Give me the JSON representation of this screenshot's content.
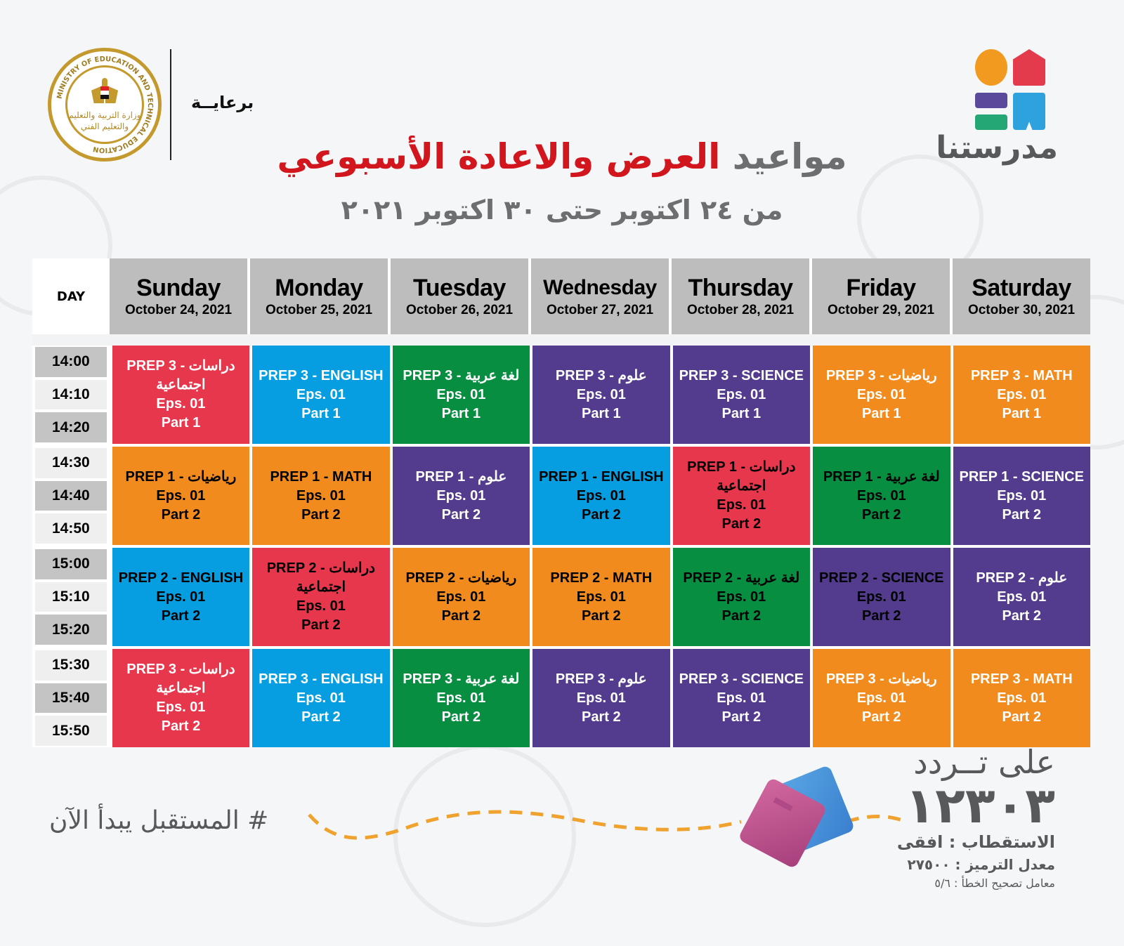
{
  "header": {
    "sponsor_label": "برعايــة",
    "ministry_logo": {
      "english_text": "MINISTRY OF EDUCATION AND TECHNICAL EDUCATION",
      "arabic_text_line1": "وزارة التربية والتعليم",
      "arabic_text_line2": "والتعليم الفني"
    },
    "brand_logo_text": "مدرستنا",
    "title_part1": "مواعيد ",
    "title_part2": "العرض والاعادة الأسبوعي",
    "subtitle": "من ٢٤ اكتوبر حتى ٣٠ اكتوبر ٢٠٢١",
    "colors": {
      "title_gray": "#6d6e70",
      "title_red": "#d2161d"
    }
  },
  "table": {
    "day_label": "DAY",
    "days": [
      {
        "name": "Sunday",
        "date": "October 24, 2021"
      },
      {
        "name": "Monday",
        "date": "October 25, 2021"
      },
      {
        "name": "Tuesday",
        "date": "October 26, 2021"
      },
      {
        "name": "Wednesday",
        "date": "October 27, 2021"
      },
      {
        "name": "Thursday",
        "date": "October 28, 2021"
      },
      {
        "name": "Friday",
        "date": "October 29, 2021"
      },
      {
        "name": "Saturday",
        "date": "October 30, 2021"
      }
    ],
    "blocks": [
      {
        "times": [
          "14:00",
          "14:10",
          "14:20"
        ],
        "slots": [
          {
            "subject": "PREP 3 - دراسات اجتماعية",
            "episode": "Eps. 01",
            "part": "Part 1",
            "color": "red"
          },
          {
            "subject": "PREP 3 - ENGLISH",
            "episode": "Eps. 01",
            "part": "Part 1",
            "color": "blue"
          },
          {
            "subject": "PREP 3 - لغة عربية",
            "episode": "Eps. 01",
            "part": "Part 1",
            "color": "green"
          },
          {
            "subject": "PREP 3 - علوم",
            "episode": "Eps. 01",
            "part": "Part 1",
            "color": "purple"
          },
          {
            "subject": "PREP 3 - SCIENCE",
            "episode": "Eps. 01",
            "part": "Part 1",
            "color": "purple"
          },
          {
            "subject": "PREP 3 - رياضيات",
            "episode": "Eps. 01",
            "part": "Part 1",
            "color": "orange"
          },
          {
            "subject": "PREP 3 - MATH",
            "episode": "Eps. 01",
            "part": "Part 1",
            "color": "orange"
          }
        ]
      },
      {
        "times": [
          "14:30",
          "14:40",
          "14:50"
        ],
        "slots": [
          {
            "subject": "PREP 1 - رياضيات",
            "episode": "Eps. 01",
            "part": "Part 2",
            "color": "orange"
          },
          {
            "subject": "PREP 1 - MATH",
            "episode": "Eps. 01",
            "part": "Part 2",
            "color": "orange"
          },
          {
            "subject": "PREP 1 - علوم",
            "episode": "Eps. 01",
            "part": "Part 2",
            "color": "purple"
          },
          {
            "subject": "PREP 1 - ENGLISH",
            "episode": "Eps. 01",
            "part": "Part 2",
            "color": "blue"
          },
          {
            "subject": "PREP 1 - دراسات اجتماعية",
            "episode": "Eps. 01",
            "part": "Part 2",
            "color": "red"
          },
          {
            "subject": "PREP 1 - لغة عربية",
            "episode": "Eps. 01",
            "part": "Part 2",
            "color": "green"
          },
          {
            "subject": "PREP 1 - SCIENCE",
            "episode": "Eps. 01",
            "part": "Part 2",
            "color": "purple"
          }
        ]
      },
      {
        "times": [
          "15:00",
          "15:10",
          "15:20"
        ],
        "slots": [
          {
            "subject": "PREP 2 - ENGLISH",
            "episode": "Eps. 01",
            "part": "Part 2",
            "color": "blue"
          },
          {
            "subject": "PREP 2 - دراسات اجتماعية",
            "episode": "Eps. 01",
            "part": "Part 2",
            "color": "red"
          },
          {
            "subject": "PREP 2 - رياضيات",
            "episode": "Eps. 01",
            "part": "Part 2",
            "color": "orange"
          },
          {
            "subject": "PREP 2 - MATH",
            "episode": "Eps. 01",
            "part": "Part 2",
            "color": "orange"
          },
          {
            "subject": "PREP 2 - لغة عربية",
            "episode": "Eps. 01",
            "part": "Part 2",
            "color": "green"
          },
          {
            "subject": "PREP 2 - SCIENCE",
            "episode": "Eps. 01",
            "part": "Part 2",
            "color": "purple"
          },
          {
            "subject": "PREP 2 - علوم",
            "episode": "Eps. 01",
            "part": "Part 2",
            "color": "purple"
          }
        ]
      },
      {
        "times": [
          "15:30",
          "15:40",
          "15:50"
        ],
        "slots": [
          {
            "subject": "PREP 3 - دراسات اجتماعية",
            "episode": "Eps. 01",
            "part": "Part 2",
            "color": "red"
          },
          {
            "subject": "PREP 3 - ENGLISH",
            "episode": "Eps. 01",
            "part": "Part 2",
            "color": "blue"
          },
          {
            "subject": "PREP 3 - لغة عربية",
            "episode": "Eps. 01",
            "part": "Part 2",
            "color": "green"
          },
          {
            "subject": "PREP 3 - علوم",
            "episode": "Eps. 01",
            "part": "Part 2",
            "color": "purple"
          },
          {
            "subject": "PREP 3 - SCIENCE",
            "episode": "Eps. 01",
            "part": "Part 2",
            "color": "purple"
          },
          {
            "subject": "PREP 3 - رياضيات",
            "episode": "Eps. 01",
            "part": "Part 2",
            "color": "orange"
          },
          {
            "subject": "PREP 3 - MATH",
            "episode": "Eps. 01",
            "part": "Part 2",
            "color": "orange"
          }
        ]
      }
    ],
    "colors": {
      "red": "#e6374c",
      "blue": "#069ee0",
      "green": "#078e41",
      "purple": "#533b8d",
      "orange": "#f18b1d",
      "header_gray": "#bdbdbd"
    }
  },
  "footer": {
    "hashtag": "# المستقبل يبدأ الآن",
    "frequency_label": "على تــردد",
    "frequency_value": "١٢٣٠٣",
    "polarization": "الاستقطاب : افقى",
    "symbol_rate": "معدل الترميز : ٢٧٥٠٠",
    "fec": "معامل تصحيح الخطأ : ٥/٦"
  }
}
